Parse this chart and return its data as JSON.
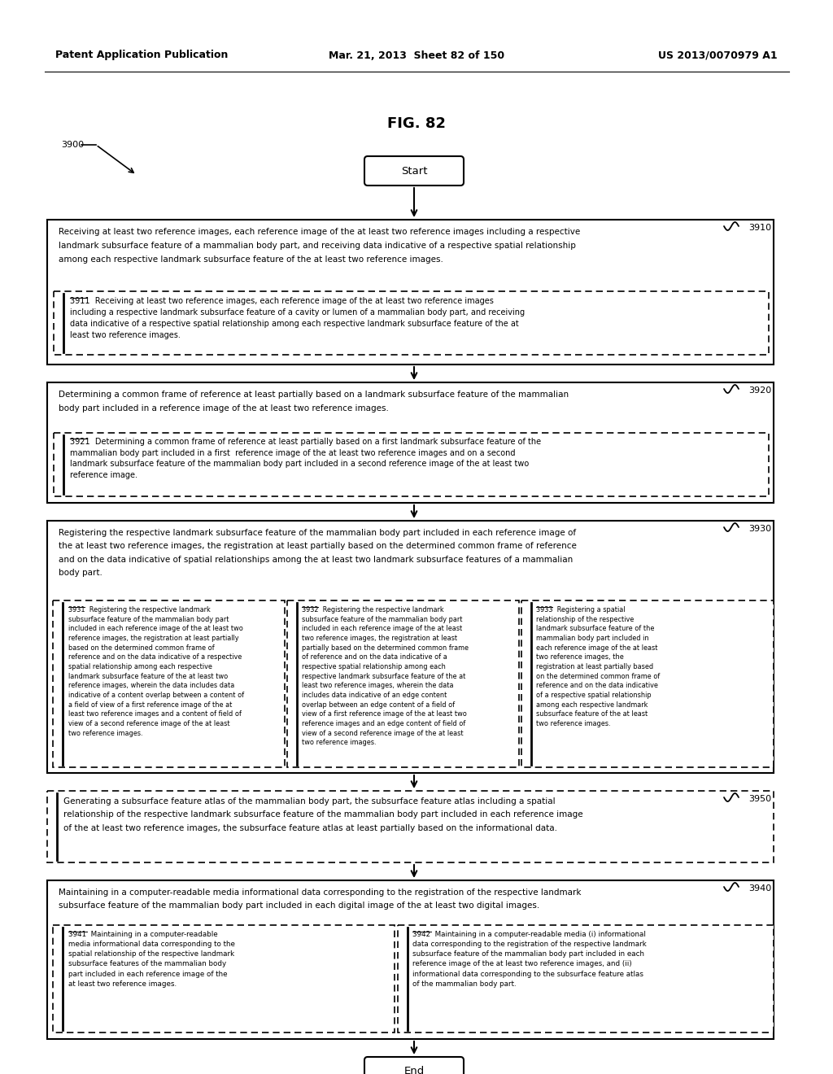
{
  "bg_color": "#ffffff",
  "header_left": "Patent Application Publication",
  "header_mid": "Mar. 21, 2013  Sheet 82 of 150",
  "header_right": "US 2013/0070979 A1",
  "fig_label": "FIG. 82",
  "fig_number": "3900",
  "start_label": "Start",
  "end_label": "End",
  "box3910_label": "3910",
  "box3911_text": "3911  Receiving at least two reference images, each reference image of the at least two reference images\nincluding a respective landmark subsurface feature of a cavity or lumen of a mammalian body part, and receiving\ndata indicative of a respective spatial relationship among each respective landmark subsurface feature of the at\nleast two reference images.",
  "box3920_label": "3920",
  "box3921_text": "3921  Determining a common frame of reference at least partially based on a first landmark subsurface feature of the\nmammalian body part included in a first  reference image of the at least two reference images and on a second\nlandmark subsurface feature of the mammalian body part included in a second reference image of the at least two\nreference image.",
  "box3930_label": "3930",
  "box3931_text": "3931  Registering the respective landmark\nsubsurface feature of the mammalian body part\nincluded in each reference image of the at least two\nreference images, the registration at least partially\nbased on the determined common frame of\nreference and on the data indicative of a respective\nspatial relationship among each respective\nlandmark subsurface feature of the at least two\nreference images, wherein the data includes data\nindicative of a content overlap between a content of\na field of view of a first reference image of the at\nleast two reference images and a content of field of\nview of a second reference image of the at least\ntwo reference images.",
  "box3932_text": "3932  Registering the respective landmark\nsubsurface feature of the mammalian body part\nincluded in each reference image of the at least\ntwo reference images, the registration at least\npartially based on the determined common frame\nof reference and on the data indicative of a\nrespective spatial relationship among each\nrespective landmark subsurface feature of the at\nleast two reference images, wherein the data\nincludes data indicative of an edge content\noverlap between an edge content of a field of\nview of a first reference image of the at least two\nreference images and an edge content of field of\nview of a second reference image of the at least\ntwo reference images.",
  "box3933_text": "3933  Registering a spatial\nrelationship of the respective\nlandmark subsurface feature of the\nmammalian body part included in\neach reference image of the at least\ntwo reference images, the\nregistration at least partially based\non the determined common frame of\nreference and on the data indicative\nof a respective spatial relationship\namong each respective landmark\nsubsurface feature of the at least\ntwo reference images.",
  "box3950_label": "3950",
  "box3950_text": "Generating a subsurface feature atlas of the mammalian body part, the subsurface feature atlas including a spatial\nrelationship of the respective landmark subsurface feature of the mammalian body part included in each reference image\nof the at least two reference images, the subsurface feature atlas at least partially based on the informational data.",
  "box3940_label": "3940",
  "box3941_text": "3941  Maintaining in a computer-readable\nmedia informational data corresponding to the\nspatial relationship of the respective landmark\nsubsurface features of the mammalian body\npart included in each reference image of the\nat least two reference images.",
  "box3942_text": "3942  Maintaining in a computer-readable media (i) informational\ndata corresponding to the registration of the respective landmark\nsubsurface feature of the mammalian body part included in each\nreference image of the at least two reference images, and (ii)\ninformational data corresponding to the subsurface feature atlas\nof the mammalian body part."
}
